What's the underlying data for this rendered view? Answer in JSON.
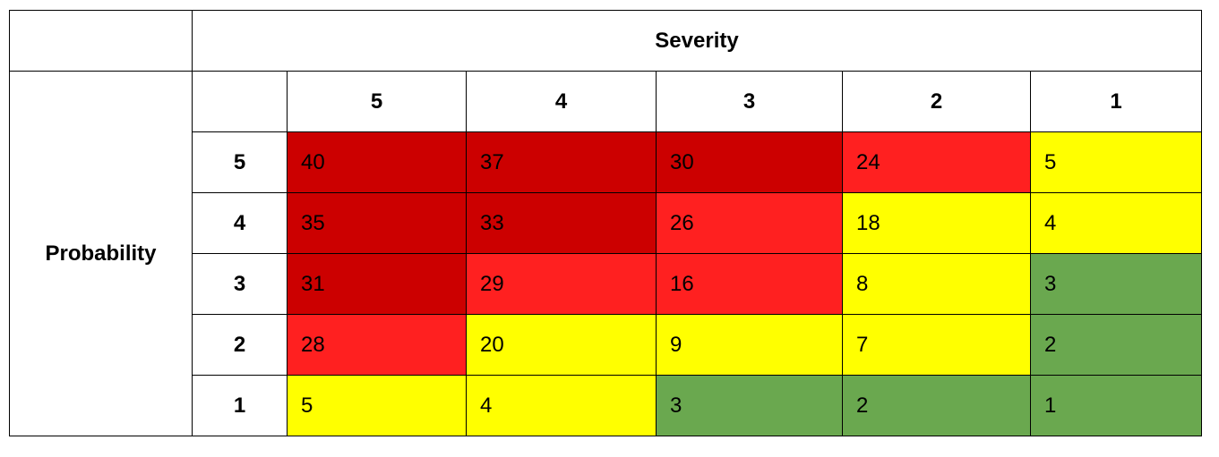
{
  "header": {
    "severity_label": "Severity",
    "probability_label": "Probability"
  },
  "severity_levels": [
    "5",
    "4",
    "3",
    "2",
    "1"
  ],
  "rows": [
    {
      "probability": "5",
      "cells": [
        {
          "value": "40",
          "color": "#cc0000"
        },
        {
          "value": "37",
          "color": "#cc0000"
        },
        {
          "value": "30",
          "color": "#cc0000"
        },
        {
          "value": "24",
          "color": "#ff2020"
        },
        {
          "value": "5",
          "color": "#ffff00"
        }
      ]
    },
    {
      "probability": "4",
      "cells": [
        {
          "value": "35",
          "color": "#cc0000"
        },
        {
          "value": "33",
          "color": "#cc0000"
        },
        {
          "value": "26",
          "color": "#ff2020"
        },
        {
          "value": "18",
          "color": "#ffff00"
        },
        {
          "value": "4",
          "color": "#ffff00"
        }
      ]
    },
    {
      "probability": "3",
      "cells": [
        {
          "value": "31",
          "color": "#cc0000"
        },
        {
          "value": "29",
          "color": "#ff2020"
        },
        {
          "value": "16",
          "color": "#ff2020"
        },
        {
          "value": "8",
          "color": "#ffff00"
        },
        {
          "value": "3",
          "color": "#6aa84f"
        }
      ]
    },
    {
      "probability": "2",
      "cells": [
        {
          "value": "28",
          "color": "#ff2020"
        },
        {
          "value": "20",
          "color": "#ffff00"
        },
        {
          "value": "9",
          "color": "#ffff00"
        },
        {
          "value": "7",
          "color": "#ffff00"
        },
        {
          "value": "2",
          "color": "#6aa84f"
        }
      ]
    },
    {
      "probability": "1",
      "cells": [
        {
          "value": "5",
          "color": "#ffff00"
        },
        {
          "value": "4",
          "color": "#ffff00"
        },
        {
          "value": "3",
          "color": "#6aa84f"
        },
        {
          "value": "2",
          "color": "#6aa84f"
        },
        {
          "value": "1",
          "color": "#6aa84f"
        }
      ]
    }
  ]
}
